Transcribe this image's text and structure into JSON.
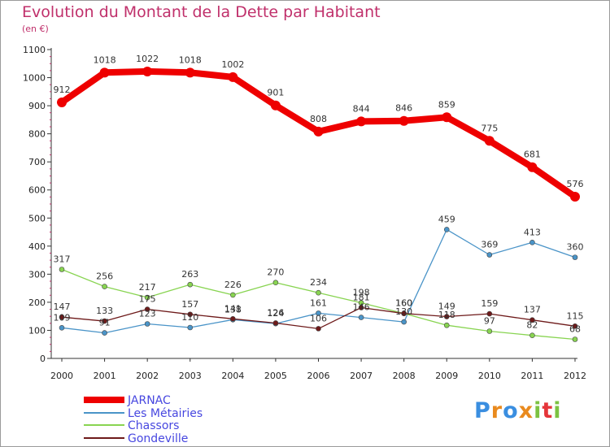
{
  "title": "Evolution du Montant de la Dette par Habitant",
  "subtitle": "(en €)",
  "logo": {
    "letters": [
      "P",
      "r",
      "o",
      "x",
      "i",
      "t",
      "i"
    ],
    "colors": [
      "#3a8ee0",
      "#e98a1e",
      "#3a8ee0",
      "#e98a1e",
      "#7cc242",
      "#e5353a",
      "#7cc242"
    ]
  },
  "chart_data": {
    "type": "line",
    "x": [
      "2000",
      "2001",
      "2002",
      "2003",
      "2004",
      "2005",
      "2006",
      "2007",
      "2008",
      "2009",
      "2010",
      "2011",
      "2012"
    ],
    "ylim": [
      0,
      1100
    ],
    "yticks": [
      0,
      100,
      200,
      300,
      400,
      500,
      600,
      700,
      800,
      900,
      1000,
      1100
    ],
    "grid": false,
    "legend_position": "bottom-left",
    "series": [
      {
        "name": "JARNAC",
        "color": "#ee0000",
        "values": [
          912,
          1018,
          1022,
          1018,
          1002,
          901,
          808,
          844,
          846,
          859,
          775,
          681,
          576
        ]
      },
      {
        "name": "Les Métairies",
        "color": "#4a94c8",
        "values": [
          109,
          91,
          123,
          110,
          138,
          124,
          161,
          146,
          130,
          459,
          369,
          413,
          360
        ]
      },
      {
        "name": "Chassors",
        "color": "#88d451",
        "values": [
          317,
          256,
          217,
          263,
          226,
          270,
          234,
          198,
          160,
          118,
          97,
          82,
          68
        ]
      },
      {
        "name": "Gondeville",
        "color": "#6e1a1a",
        "values": [
          147,
          133,
          175,
          157,
          141,
          126,
          106,
          181,
          160,
          149,
          159,
          137,
          115
        ]
      }
    ],
    "data_labels": [
      [
        "912",
        "1018",
        "1022",
        "1018",
        "1002",
        "901",
        "808",
        "844",
        "846",
        "859",
        "775",
        "681",
        "576"
      ],
      [
        "109",
        "91",
        "123",
        "110",
        "138",
        "124",
        "161",
        "146",
        "130",
        "459",
        "369",
        "413",
        "360"
      ],
      [
        "317",
        "256",
        "217",
        "263",
        "226",
        "270",
        "234",
        "198",
        "160",
        "118",
        "97",
        "82",
        "68"
      ],
      [
        "147",
        "133",
        "175",
        "157",
        "141",
        "126",
        "106",
        "181",
        "160",
        "149",
        "159",
        "137",
        "115"
      ]
    ]
  }
}
